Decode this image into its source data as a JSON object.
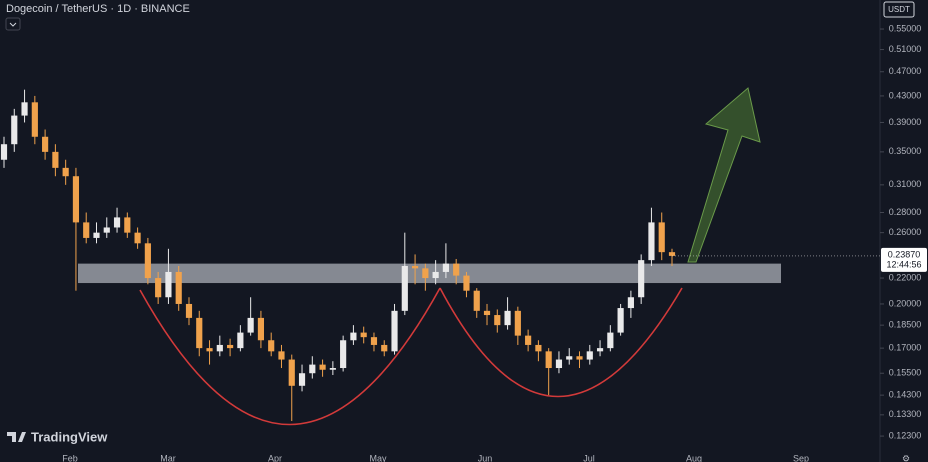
{
  "chart_data": {
    "type": "candlestick",
    "title": "Dogecoin / TetherUS · 1D · BINANCE",
    "currency": "USDT",
    "brand": "TradingView",
    "log_scale": true,
    "ylim": [
      0.116,
      0.612
    ],
    "yticks": [
      {
        "value": 0.55,
        "label": "0.55000"
      },
      {
        "value": 0.51,
        "label": "0.51000"
      },
      {
        "value": 0.47,
        "label": "0.47000"
      },
      {
        "value": 0.43,
        "label": "0.43000"
      },
      {
        "value": 0.39,
        "label": "0.39000"
      },
      {
        "value": 0.35,
        "label": "0.35000"
      },
      {
        "value": 0.31,
        "label": "0.31000"
      },
      {
        "value": 0.28,
        "label": "0.28000"
      },
      {
        "value": 0.26,
        "label": "0.26000"
      },
      {
        "value": 0.22,
        "label": "0.22000"
      },
      {
        "value": 0.2,
        "label": "0.20000"
      },
      {
        "value": 0.185,
        "label": "0.18500"
      },
      {
        "value": 0.17,
        "label": "0.17000"
      },
      {
        "value": 0.155,
        "label": "0.15500"
      },
      {
        "value": 0.143,
        "label": "0.14300"
      },
      {
        "value": 0.133,
        "label": "0.13300"
      },
      {
        "value": 0.123,
        "label": "0.12300"
      }
    ],
    "x_axis_labels": [
      "Feb",
      "Mar",
      "Apr",
      "May",
      "Jun",
      "Jul",
      "Aug",
      "Sep"
    ],
    "up_color": "#e9e9ea",
    "down_color": "#f0a24c",
    "zone": [
      0.216,
      0.232
    ],
    "last_price": {
      "value": 0.2387,
      "label": "0.23870"
    },
    "countdown": "12:44:56",
    "open": [
      0.34,
      0.36,
      0.4,
      0.42,
      0.37,
      0.35,
      0.33,
      0.32,
      0.27,
      0.255,
      0.26,
      0.265,
      0.275,
      0.26,
      0.25,
      0.22,
      0.205,
      0.225,
      0.2,
      0.19,
      0.17,
      0.168,
      0.172,
      0.17,
      0.18,
      0.19,
      0.175,
      0.168,
      0.163,
      0.148,
      0.155,
      0.16,
      0.157,
      0.158,
      0.175,
      0.18,
      0.177,
      0.172,
      0.168,
      0.195,
      0.23,
      0.228,
      0.22,
      0.225,
      0.232,
      0.222,
      0.21,
      0.195,
      0.192,
      0.185,
      0.195,
      0.178,
      0.172,
      0.168,
      0.158,
      0.163,
      0.165,
      0.163,
      0.168,
      0.17,
      0.18,
      0.197,
      0.205,
      0.235,
      0.27,
      0.242
    ],
    "high": [
      0.37,
      0.41,
      0.44,
      0.43,
      0.38,
      0.36,
      0.34,
      0.33,
      0.28,
      0.27,
      0.275,
      0.285,
      0.28,
      0.265,
      0.255,
      0.225,
      0.245,
      0.23,
      0.205,
      0.195,
      0.175,
      0.178,
      0.176,
      0.185,
      0.205,
      0.195,
      0.18,
      0.172,
      0.166,
      0.16,
      0.165,
      0.163,
      0.162,
      0.178,
      0.185,
      0.184,
      0.18,
      0.175,
      0.2,
      0.26,
      0.24,
      0.232,
      0.235,
      0.25,
      0.236,
      0.225,
      0.212,
      0.2,
      0.196,
      0.205,
      0.198,
      0.182,
      0.175,
      0.17,
      0.168,
      0.17,
      0.168,
      0.172,
      0.175,
      0.185,
      0.2,
      0.21,
      0.24,
      0.285,
      0.28,
      0.245
    ],
    "low": [
      0.33,
      0.35,
      0.39,
      0.36,
      0.34,
      0.32,
      0.31,
      0.21,
      0.25,
      0.25,
      0.255,
      0.26,
      0.255,
      0.245,
      0.215,
      0.2,
      0.2,
      0.195,
      0.185,
      0.165,
      0.16,
      0.165,
      0.165,
      0.168,
      0.178,
      0.17,
      0.165,
      0.158,
      0.13,
      0.145,
      0.152,
      0.153,
      0.154,
      0.156,
      0.172,
      0.173,
      0.168,
      0.165,
      0.166,
      0.192,
      0.215,
      0.21,
      0.215,
      0.22,
      0.215,
      0.205,
      0.19,
      0.185,
      0.18,
      0.182,
      0.172,
      0.168,
      0.162,
      0.143,
      0.155,
      0.16,
      0.158,
      0.16,
      0.165,
      0.168,
      0.178,
      0.19,
      0.2,
      0.23,
      0.235,
      0.23
    ],
    "close": [
      0.36,
      0.4,
      0.42,
      0.37,
      0.35,
      0.33,
      0.32,
      0.27,
      0.255,
      0.26,
      0.265,
      0.275,
      0.26,
      0.25,
      0.22,
      0.205,
      0.225,
      0.2,
      0.19,
      0.17,
      0.168,
      0.172,
      0.17,
      0.18,
      0.19,
      0.175,
      0.168,
      0.163,
      0.148,
      0.155,
      0.16,
      0.157,
      0.158,
      0.175,
      0.18,
      0.177,
      0.172,
      0.168,
      0.195,
      0.23,
      0.228,
      0.22,
      0.225,
      0.232,
      0.222,
      0.21,
      0.195,
      0.192,
      0.185,
      0.195,
      0.178,
      0.172,
      0.168,
      0.158,
      0.163,
      0.165,
      0.163,
      0.168,
      0.17,
      0.18,
      0.197,
      0.205,
      0.235,
      0.27,
      0.242,
      0.2387
    ]
  }
}
